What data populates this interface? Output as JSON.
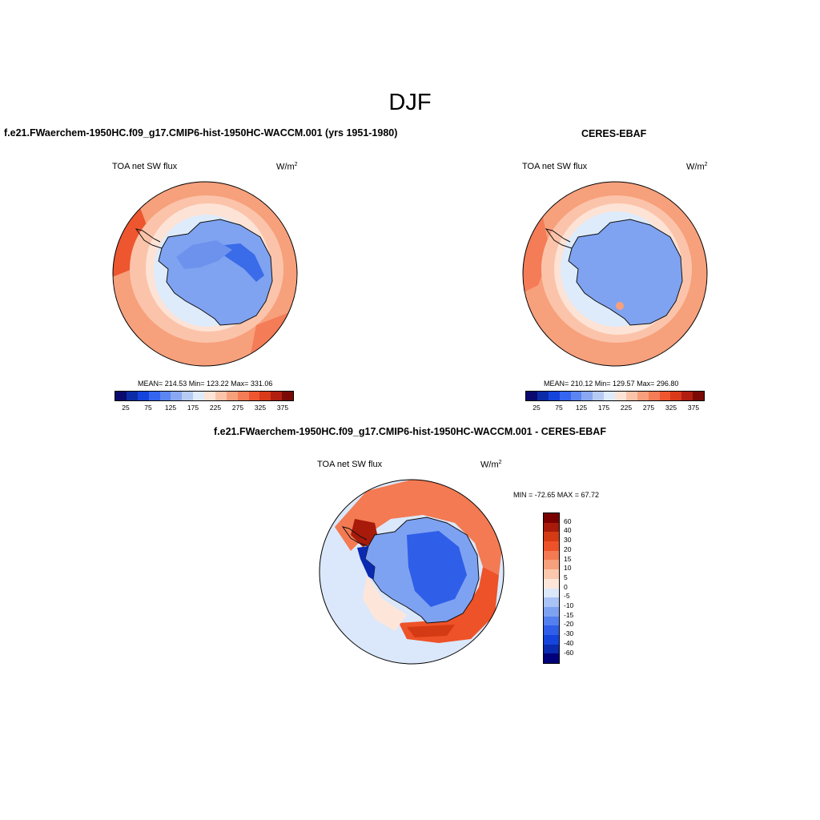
{
  "season": "DJF",
  "panel_model": {
    "title": "f.e21.FWaerchem-1950HC.f09_g17.CMIP6-hist-1950HC-WACCM.001 (yrs 1951-1980)",
    "variable": "TOA net SW flux",
    "units": "W/m",
    "units_sup": "2",
    "stats": "MEAN= 214.53   Min= 123.22   Max= 331.06"
  },
  "panel_obs": {
    "title": "CERES-EBAF",
    "variable": "TOA net SW flux",
    "units": "W/m",
    "units_sup": "2",
    "stats": "MEAN= 210.12   Min= 129.57   Max= 296.80"
  },
  "panel_diff": {
    "title": "f.e21.FWaerchem-1950HC.f09_g17.CMIP6-hist-1950HC-WACCM.001 - CERES-EBAF",
    "variable": "TOA net SW flux",
    "units": "W/m",
    "units_sup": "2",
    "minmax": "MIN = -72.65 MAX =  67.72"
  },
  "colors": {
    "abs_scale": [
      "#0a0a6e",
      "#0b2ca6",
      "#1544dc",
      "#3566f0",
      "#5b86f2",
      "#8aa8f2",
      "#b6cbf4",
      "#deebfb",
      "#fde3d6",
      "#fbc4aa",
      "#f7a07c",
      "#f47c56",
      "#ee5630",
      "#d93a1a",
      "#b01f10",
      "#7a0a06"
    ],
    "diff_scale": [
      "#00007a",
      "#0a2ab0",
      "#1544dc",
      "#2f5ee8",
      "#5380ee",
      "#7ea2f2",
      "#a9c3f6",
      "#dbe8fb",
      "#fde6d9",
      "#fbc7ad",
      "#f7a07c",
      "#f37a52",
      "#ee5228",
      "#d43a14",
      "#a81a0a",
      "#7a0000"
    ],
    "ice_low": "#7fa3f1",
    "ice_mid": "#6c92ee",
    "ice_core": "#3a6be8"
  },
  "chart_data": [
    {
      "type": "heatmap",
      "name": "model",
      "projection": "south polar stereographic",
      "title": "f.e21.FWaerchem-1950HC.f09_g17.CMIP6-hist-1950HC-WACCM.001 (yrs 1951-1980)",
      "variable": "TOA net SW flux",
      "units": "W/m^2",
      "mean": 214.53,
      "min": 123.22,
      "max": 331.06,
      "contour_levels": [
        25,
        50,
        75,
        100,
        125,
        150,
        175,
        200,
        225,
        250,
        275,
        300,
        325,
        350,
        375
      ],
      "colorbar_labels": [
        "25",
        "75",
        "125",
        "175",
        "225",
        "275",
        "325",
        "375"
      ]
    },
    {
      "type": "heatmap",
      "name": "observations",
      "projection": "south polar stereographic",
      "title": "CERES-EBAF",
      "variable": "TOA net SW flux",
      "units": "W/m^2",
      "mean": 210.12,
      "min": 129.57,
      "max": 296.8,
      "contour_levels": [
        25,
        50,
        75,
        100,
        125,
        150,
        175,
        200,
        225,
        250,
        275,
        300,
        325,
        350,
        375
      ],
      "colorbar_labels": [
        "25",
        "75",
        "125",
        "175",
        "225",
        "275",
        "325",
        "375"
      ]
    },
    {
      "type": "heatmap",
      "name": "difference",
      "projection": "south polar stereographic",
      "title": "f.e21.FWaerchem-1950HC.f09_g17.CMIP6-hist-1950HC-WACCM.001 - CERES-EBAF",
      "variable": "TOA net SW flux",
      "units": "W/m^2",
      "min": -72.65,
      "max": 67.72,
      "contour_levels": [
        -60,
        -40,
        -30,
        -20,
        -15,
        -10,
        -5,
        0,
        5,
        10,
        15,
        20,
        30,
        40,
        60
      ],
      "colorbar_labels": [
        "60",
        "40",
        "30",
        "20",
        "15",
        "10",
        "5",
        "0",
        "-5",
        "-10",
        "-15",
        "-20",
        "-30",
        "-40",
        "-60"
      ]
    }
  ]
}
